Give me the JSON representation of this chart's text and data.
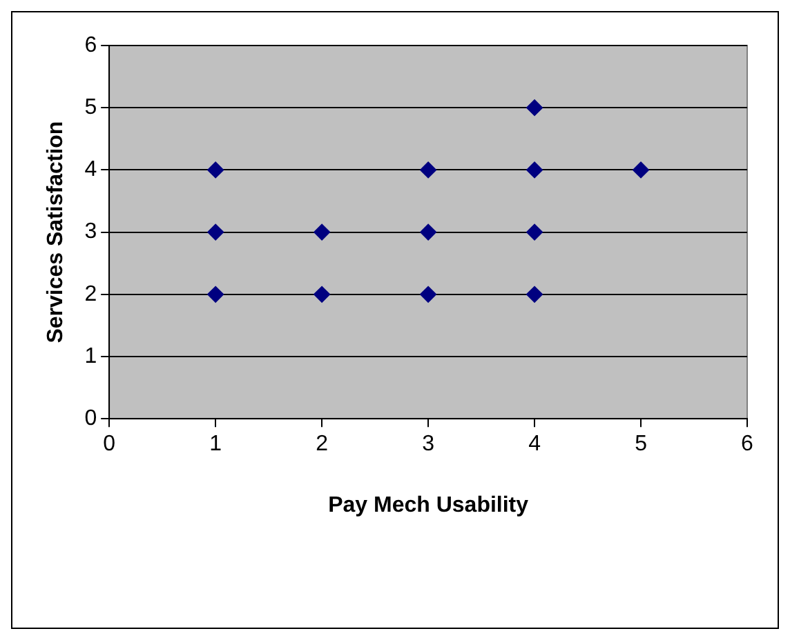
{
  "chart_data": {
    "type": "scatter",
    "xlabel": "Pay Mech Usability",
    "ylabel": "Services Satisfaction",
    "x": [
      1,
      1,
      1,
      2,
      2,
      3,
      3,
      3,
      4,
      4,
      4,
      4,
      5
    ],
    "series": [
      {
        "color": "#000080",
        "values": [
          4,
          3,
          2,
          3,
          2,
          4,
          3,
          2,
          5,
          4,
          3,
          2,
          4
        ]
      }
    ],
    "xlim": [
      0,
      6
    ],
    "xticks": [
      0,
      1,
      2,
      3,
      4,
      5,
      6
    ],
    "ylim": [
      0,
      6
    ],
    "yticks": [
      0,
      1,
      2,
      3,
      4,
      5,
      6
    ],
    "grid": "y",
    "legend": false,
    "marker": "diamond"
  }
}
